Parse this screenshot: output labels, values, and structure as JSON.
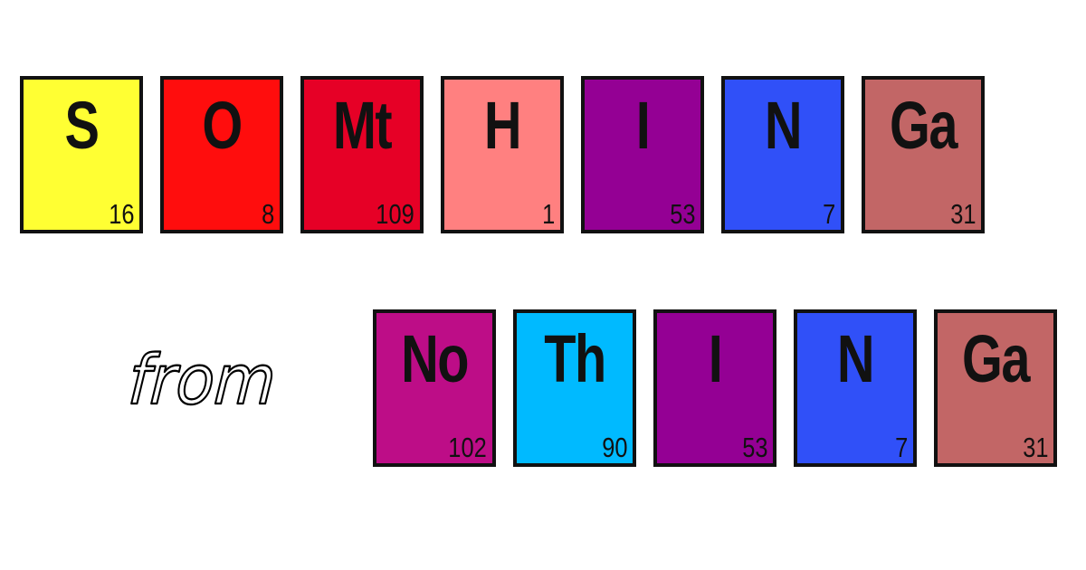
{
  "connector_text": "from",
  "row1": [
    {
      "symbol": "S",
      "number": "16",
      "color": "#ffff33"
    },
    {
      "symbol": "O",
      "number": "8",
      "color": "#ff0d0d"
    },
    {
      "symbol": "Mt",
      "number": "109",
      "color": "#e60026"
    },
    {
      "symbol": "H",
      "number": "1",
      "color": "#ff8080"
    },
    {
      "symbol": "I",
      "number": "53",
      "color": "#940094"
    },
    {
      "symbol": "N",
      "number": "7",
      "color": "#3050f8"
    },
    {
      "symbol": "Ga",
      "number": "31",
      "color": "#c26666"
    }
  ],
  "row2": [
    {
      "symbol": "No",
      "number": "102",
      "color": "#bd0d87"
    },
    {
      "symbol": "Th",
      "number": "90",
      "color": "#00baff"
    },
    {
      "symbol": "I",
      "number": "53",
      "color": "#940094"
    },
    {
      "symbol": "N",
      "number": "7",
      "color": "#3050f8"
    },
    {
      "symbol": "Ga",
      "number": "31",
      "color": "#c26666"
    }
  ]
}
